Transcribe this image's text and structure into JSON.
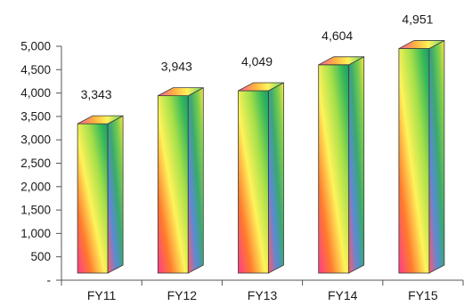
{
  "chart_data": {
    "type": "bar",
    "categories": [
      "FY11",
      "FY12",
      "FY13",
      "FY14",
      "FY15"
    ],
    "values": [
      3343,
      3943,
      4049,
      4604,
      4951
    ],
    "data_labels": [
      "3,343",
      "3,943",
      "4,049",
      "4,604",
      "4,951"
    ],
    "yticks": [
      "-",
      "500",
      "1,000",
      "1,500",
      "2,000",
      "2,500",
      "3,000",
      "3,500",
      "4,000",
      "4,500",
      "5,000"
    ],
    "ylim": [
      0,
      5000
    ],
    "ystep": 500,
    "grid": false,
    "style": "3d-rainbow-gradient",
    "axis_color": "#555555"
  }
}
